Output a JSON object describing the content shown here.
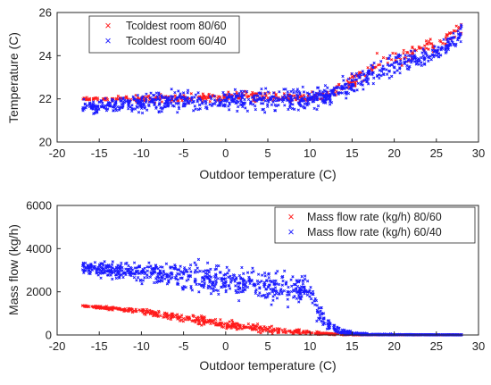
{
  "figure": {
    "background": "#ffffff",
    "axis_color": "#262626"
  },
  "chart_data": [
    {
      "type": "scatter",
      "xlabel": "Outdoor temperature (C)",
      "ylabel": "Temperature (C)",
      "xlim": [
        -20,
        30
      ],
      "ylim": [
        20,
        26
      ],
      "xticks": [
        "-20",
        "-15",
        "-10",
        "-5",
        "0",
        "5",
        "10",
        "15",
        "20",
        "25",
        "30"
      ],
      "yticks": [
        "20",
        "22",
        "24",
        "26"
      ],
      "grid": false,
      "legend_position": "top-left",
      "series": [
        {
          "name": "Tcoldest room 80/60",
          "color": "#ff1a1a",
          "marker": "x",
          "trend": [
            [
              -17,
              22.0
            ],
            [
              -10,
              22.0
            ],
            [
              -5,
              22.05
            ],
            [
              0,
              22.1
            ],
            [
              5,
              22.1
            ],
            [
              10,
              22.1
            ],
            [
              12,
              22.2
            ],
            [
              15,
              22.8
            ],
            [
              18,
              23.7
            ],
            [
              22,
              24.1
            ],
            [
              25,
              24.5
            ],
            [
              28,
              25.3
            ]
          ],
          "spread": [
            [
              -17,
              0.1
            ],
            [
              -5,
              0.35
            ],
            [
              5,
              0.3
            ],
            [
              12,
              0.3
            ],
            [
              15,
              0.5
            ],
            [
              20,
              0.6
            ],
            [
              28,
              0.5
            ]
          ],
          "x_range": [
            -17,
            28
          ],
          "point_count": 420
        },
        {
          "name": "Tcoldest room 60/40",
          "color": "#1a1aff",
          "marker": "x",
          "trend": [
            [
              -17,
              21.6
            ],
            [
              -10,
              21.8
            ],
            [
              -5,
              21.9
            ],
            [
              0,
              21.9
            ],
            [
              5,
              21.9
            ],
            [
              10,
              22.0
            ],
            [
              12,
              22.1
            ],
            [
              15,
              22.7
            ],
            [
              18,
              23.2
            ],
            [
              22,
              23.8
            ],
            [
              25,
              24.1
            ],
            [
              28,
              25.0
            ]
          ],
          "spread": [
            [
              -17,
              0.4
            ],
            [
              -10,
              0.6
            ],
            [
              0,
              0.7
            ],
            [
              5,
              0.8
            ],
            [
              10,
              0.6
            ],
            [
              15,
              0.8
            ],
            [
              20,
              0.7
            ],
            [
              28,
              0.5
            ]
          ],
          "x_range": [
            -17,
            28
          ],
          "point_count": 900
        }
      ]
    },
    {
      "type": "scatter",
      "xlabel": "Outdoor temperature (C)",
      "ylabel": "Mass flow (kg/h)",
      "xlim": [
        -20,
        30
      ],
      "ylim": [
        0,
        6000
      ],
      "xticks": [
        "-20",
        "-15",
        "-10",
        "-5",
        "0",
        "5",
        "10",
        "15",
        "20",
        "25",
        "30"
      ],
      "yticks": [
        "0",
        "2000",
        "4000",
        "6000"
      ],
      "grid": false,
      "legend_position": "top-right",
      "series": [
        {
          "name": "Mass flow rate (kg/h) 80/60",
          "color": "#ff1a1a",
          "marker": "x",
          "trend": [
            [
              -17,
              1350
            ],
            [
              -10,
              1100
            ],
            [
              -5,
              800
            ],
            [
              0,
              500
            ],
            [
              5,
              250
            ],
            [
              10,
              100
            ],
            [
              14,
              20
            ],
            [
              16,
              0
            ],
            [
              28,
              0
            ]
          ],
          "spread": [
            [
              -17,
              60
            ],
            [
              -10,
              150
            ],
            [
              -5,
              250
            ],
            [
              0,
              300
            ],
            [
              5,
              250
            ],
            [
              10,
              120
            ],
            [
              15,
              20
            ],
            [
              28,
              0
            ]
          ],
          "x_range": [
            -17,
            28
          ],
          "point_count": 700
        },
        {
          "name": "Mass flow rate (kg/h) 60/40",
          "color": "#1a1aff",
          "marker": "x",
          "trend": [
            [
              -17,
              3100
            ],
            [
              -10,
              2900
            ],
            [
              -5,
              2700
            ],
            [
              0,
              2500
            ],
            [
              5,
              2300
            ],
            [
              10,
              2000
            ],
            [
              11,
              1000
            ],
            [
              12,
              500
            ],
            [
              14,
              150
            ],
            [
              16,
              20
            ],
            [
              20,
              0
            ],
            [
              28,
              0
            ]
          ],
          "spread": [
            [
              -17,
              400
            ],
            [
              -10,
              700
            ],
            [
              -5,
              900
            ],
            [
              0,
              1000
            ],
            [
              5,
              1000
            ],
            [
              10,
              900
            ],
            [
              12,
              400
            ],
            [
              15,
              100
            ],
            [
              28,
              0
            ]
          ],
          "x_range": [
            -17,
            28
          ],
          "point_count": 1100
        }
      ]
    }
  ]
}
